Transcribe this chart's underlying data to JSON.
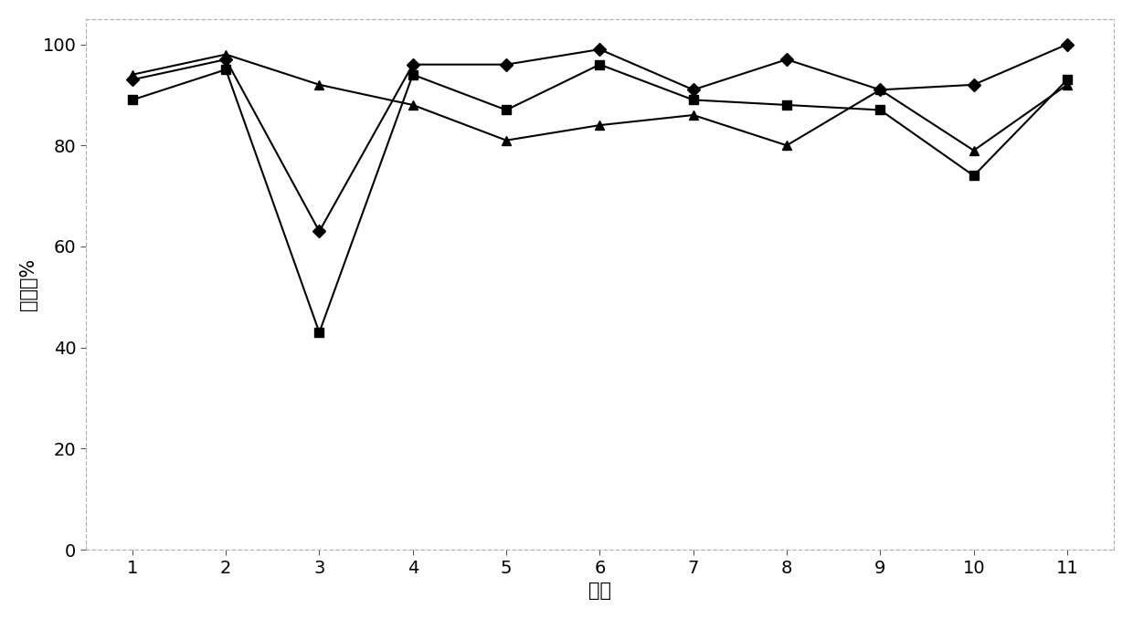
{
  "x": [
    1,
    2,
    3,
    4,
    5,
    6,
    7,
    8,
    9,
    10,
    11
  ],
  "series_diamond": [
    93,
    97,
    63,
    96,
    96,
    99,
    91,
    97,
    91,
    92,
    100
  ],
  "series_square": [
    89,
    95,
    43,
    94,
    87,
    96,
    89,
    88,
    87,
    74,
    93
  ],
  "series_triangle": [
    94,
    98,
    92,
    88,
    81,
    84,
    86,
    80,
    91,
    79,
    92
  ],
  "xlabel": "实例",
  "ylabel": "絮凝率%",
  "xlim": [
    0.5,
    11.5
  ],
  "ylim": [
    0,
    105
  ],
  "yticks": [
    0,
    20,
    40,
    60,
    80,
    100
  ],
  "xticks": [
    1,
    2,
    3,
    4,
    5,
    6,
    7,
    8,
    9,
    10,
    11
  ],
  "line_color": "#000000",
  "bg_color": "#ffffff",
  "plot_bg_color": "#ffffff",
  "marker_size": 7,
  "linewidth": 1.5,
  "xlabel_fontsize": 15,
  "ylabel_fontsize": 15,
  "tick_fontsize": 14
}
